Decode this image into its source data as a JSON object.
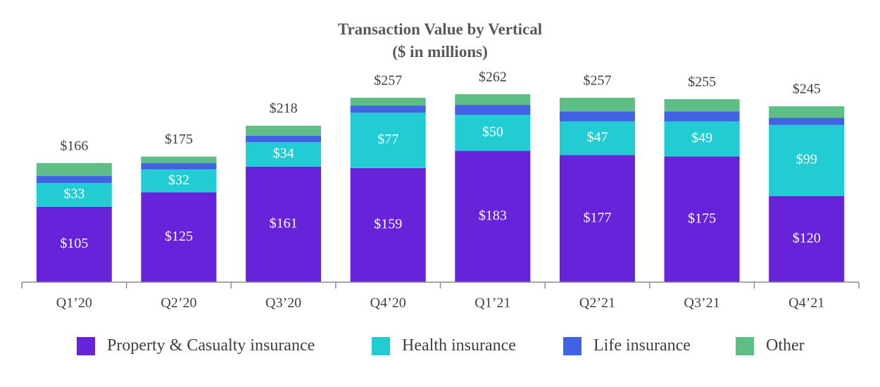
{
  "chart_data": {
    "type": "bar",
    "stacked": true,
    "title": "Transaction Value by Vertical",
    "subtitle": "($ in millions)",
    "categories": [
      "Q1’20",
      "Q2’20",
      "Q3’20",
      "Q4’20",
      "Q1’21",
      "Q2’21",
      "Q3’21",
      "Q4’21"
    ],
    "series": [
      {
        "name": "Property & Casualty insurance",
        "color": "#6623d9",
        "values": [
          105,
          125,
          161,
          159,
          183,
          177,
          175,
          120
        ],
        "labels": [
          "$105",
          "$125",
          "$161",
          "$159",
          "$183",
          "$177",
          "$175",
          "$120"
        ]
      },
      {
        "name": "Health insurance",
        "color": "#22ccd3",
        "values": [
          33,
          32,
          34,
          77,
          50,
          47,
          49,
          99
        ],
        "labels": [
          "$33",
          "$32",
          "$34",
          "$77",
          "$50",
          "$47",
          "$49",
          "$99"
        ]
      },
      {
        "name": "Life insurance",
        "color": "#4163e3",
        "values": [
          10,
          9,
          9,
          10,
          14,
          14,
          14,
          10
        ],
        "labels": []
      },
      {
        "name": "Other",
        "color": "#5dbf86",
        "values": [
          18,
          9,
          14,
          11,
          15,
          19,
          17,
          16
        ],
        "labels": []
      }
    ],
    "totals": [
      166,
      175,
      218,
      257,
      262,
      257,
      255,
      245
    ],
    "total_labels": [
      "$166",
      "$175",
      "$218",
      "$257",
      "$262",
      "$257",
      "$255",
      "$245"
    ],
    "ylim": [
      0,
      270
    ],
    "grid": false,
    "legend_position": "bottom"
  }
}
